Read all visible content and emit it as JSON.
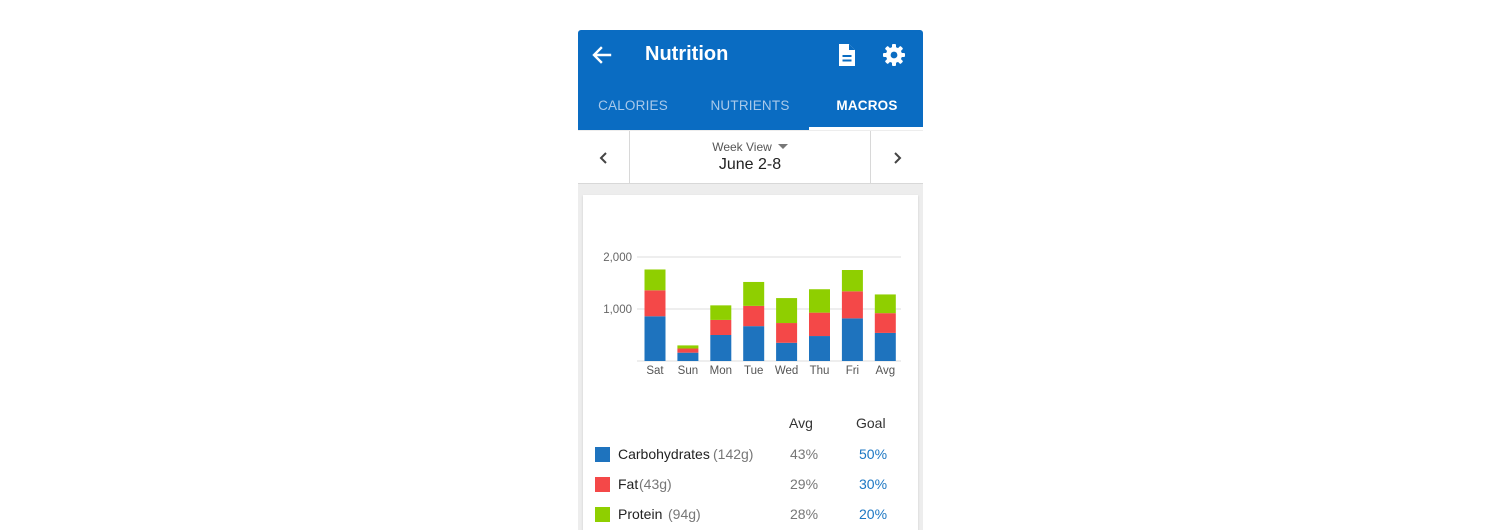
{
  "header": {
    "title": "Nutrition",
    "color": "#0a6cc2",
    "icons": [
      "back-arrow-icon",
      "report-document-icon",
      "settings-gear-icon"
    ]
  },
  "tabs": [
    {
      "label": "CALORIES",
      "active": false
    },
    {
      "label": "NUTRIENTS",
      "active": false
    },
    {
      "label": "MACROS",
      "active": true
    }
  ],
  "date_nav": {
    "view_label": "Week View",
    "range": "June 2-8",
    "icons": [
      "chevron-left-icon",
      "chevron-right-icon",
      "dropdown-caret-icon"
    ]
  },
  "chart_data": {
    "type": "bar",
    "stacked": true,
    "categories": [
      "Sat",
      "Sun",
      "Mon",
      "Tue",
      "Wed",
      "Thu",
      "Fri",
      "Avg"
    ],
    "series": [
      {
        "name": "Carbohydrates",
        "color": "#1e73be",
        "values": [
          860,
          160,
          500,
          670,
          350,
          480,
          820,
          540
        ]
      },
      {
        "name": "Fat",
        "color": "#f44848",
        "values": [
          500,
          80,
          290,
          390,
          380,
          450,
          520,
          380
        ]
      },
      {
        "name": "Protein",
        "color": "#8fcf00",
        "values": [
          400,
          60,
          280,
          460,
          480,
          450,
          410,
          360
        ]
      }
    ],
    "ylim": [
      0,
      2000
    ],
    "yticks": [
      "1,000",
      "2,000"
    ],
    "grid": true
  },
  "macros": {
    "col_avg": "Avg",
    "col_goal": "Goal",
    "rows": [
      {
        "name": "Carbohydrates",
        "grams": "(142g)",
        "avg": "43%",
        "goal": "50%",
        "color": "#1e73be"
      },
      {
        "name": "Fat",
        "grams": "(43g)",
        "avg": "29%",
        "goal": "30%",
        "color": "#f44848"
      },
      {
        "name": "Protein",
        "grams": "(94g)",
        "avg": "28%",
        "goal": "20%",
        "color": "#8fcf00"
      }
    ]
  }
}
